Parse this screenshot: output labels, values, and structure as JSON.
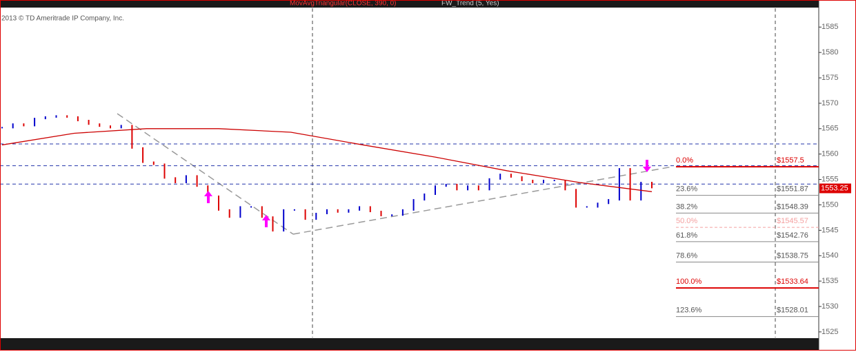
{
  "chart_data": {
    "type": "price",
    "copyright": "2013 © TD Ameritrade IP Company, Inc.",
    "study_label": "MovAvgTriangular(CLOSE, 390, 0)",
    "trend_label": "FW_Trend (5, Yes)",
    "ylim": [
      1523.9,
      1588.7
    ],
    "yticks": [
      1525,
      1530,
      1535,
      1540,
      1545,
      1550,
      1555,
      1560,
      1565,
      1570,
      1575,
      1580,
      1585
    ],
    "series": [
      {
        "name": "Price",
        "up_color": "#0000cc",
        "down_color": "#dd0000",
        "values": [
          1565.2,
          1565.9,
          1565.6,
          1567,
          1567.3,
          1567.5,
          1567.3,
          1566.6,
          1565.9,
          1565.5,
          1565.2,
          1565.6,
          1561.2,
          1558.4,
          1558,
          1555.3,
          1554.4,
          1555.7,
          1553.7,
          1551.7,
          1549,
          1547.6,
          1549.6,
          1549.6,
          1547.6,
          1544.9,
          1549,
          1549,
          1547.2,
          1548.3,
          1549,
          1548.6,
          1549,
          1549.6,
          1548.7,
          1547.9,
          1548,
          1549,
          1551,
          1552.1,
          1553.7,
          1554,
          1553,
          1553.7,
          1553,
          1555.1,
          1556,
          1555.5,
          1554.8,
          1554.4,
          1554.8,
          1554.8,
          1553,
          1549.6,
          1549.6,
          1550.3,
          1551,
          1557.1,
          1551,
          1554.4,
          1553.4
        ]
      },
      {
        "name": "MovAvgTriangular",
        "color": "#cc0000",
        "values": [
          1561.8,
          1564.1,
          1565,
          1565,
          1564.3,
          1561.8,
          1559.4,
          1556.7,
          1554.4,
          1552.6
        ]
      }
    ],
    "last_price": {
      "value": 1553.25,
      "label": "1553.25"
    },
    "levels": [
      1562,
      1557.7,
      1554.1
    ],
    "fib_levels": [
      {
        "label": "0.0%",
        "value": 1557.5,
        "price_label": "$1557.5",
        "color": "#dd0000",
        "width": 2
      },
      {
        "label": "23.6%",
        "value": 1551.87,
        "price_label": "$1551.87",
        "color": "#888888",
        "width": 1
      },
      {
        "label": "38.2%",
        "value": 1548.39,
        "price_label": "$1548.39",
        "color": "#888888",
        "width": 1
      },
      {
        "label": "50.0%",
        "value": 1545.57,
        "price_label": "$1545.57",
        "color": "#f4a0a0",
        "width": 1
      },
      {
        "label": "61.8%",
        "value": 1542.76,
        "price_label": "$1542.76",
        "color": "#888888",
        "width": 1
      },
      {
        "label": "78.6%",
        "value": 1538.75,
        "price_label": "$1538.75",
        "color": "#888888",
        "width": 1
      },
      {
        "label": "100.0%",
        "value": 1533.64,
        "price_label": "$1533.64",
        "color": "#dd0000",
        "width": 2
      },
      {
        "label": "123.6%",
        "value": 1528.01,
        "price_label": "$1528.01",
        "color": "#888888",
        "width": 1
      }
    ]
  }
}
